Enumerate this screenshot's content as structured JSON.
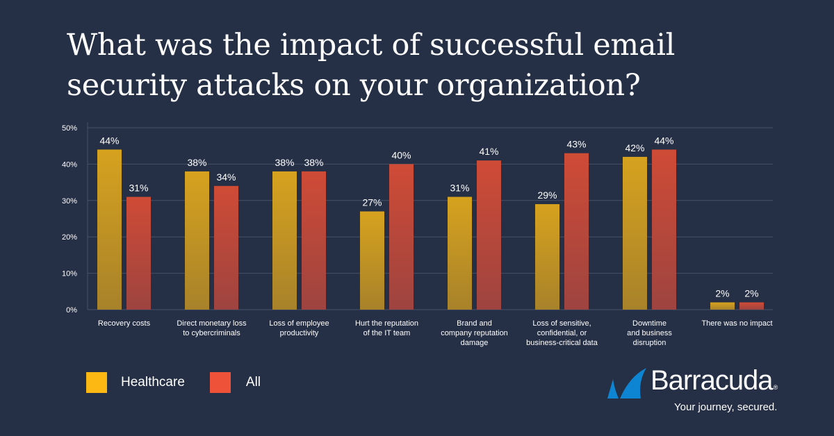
{
  "chart_data": {
    "type": "bar",
    "title": "What was the impact of successful email security attacks on your organization?",
    "xlabel": "",
    "ylabel": "",
    "ylim": [
      0,
      50
    ],
    "yticks": [
      "0%",
      "10%",
      "20%",
      "30%",
      "40%",
      "50%"
    ],
    "ytick_values": [
      0,
      10,
      20,
      30,
      40,
      50
    ],
    "grid": true,
    "legend_position": "bottom-left",
    "categories": [
      [
        "Recovery costs"
      ],
      [
        "Direct monetary loss",
        "to cybercriminals"
      ],
      [
        "Loss of employee",
        "productivity"
      ],
      [
        "Hurt the reputation",
        "of the IT team"
      ],
      [
        "Brand and",
        "company reputation",
        "damage"
      ],
      [
        "Loss of sensitive,",
        "confidential, or",
        "business-critical data"
      ],
      [
        "Downtime",
        "and business",
        "disruption"
      ],
      [
        "There was no impact"
      ]
    ],
    "series": [
      {
        "name": "Healthcare",
        "color": "#fdb813",
        "bar_top": "#d6a21e",
        "bar_bottom": "#a8822a",
        "values": [
          44,
          38,
          38,
          27,
          31,
          29,
          42,
          2
        ],
        "labels": [
          "44%",
          "38%",
          "38%",
          "27%",
          "31%",
          "29%",
          "42%",
          "2%"
        ]
      },
      {
        "name": "All",
        "color": "#ee5339",
        "bar_top": "#cf4b36",
        "bar_bottom": "#9e4440",
        "values": [
          31,
          34,
          38,
          40,
          41,
          43,
          44,
          2
        ],
        "labels": [
          "31%",
          "34%",
          "38%",
          "40%",
          "41%",
          "43%",
          "44%",
          "2%"
        ]
      }
    ]
  },
  "header": {
    "title_line1": "What was the impact of successful email",
    "title_line2": "security attacks on your organization?"
  },
  "brand": {
    "name": "Barracuda",
    "registered": "®",
    "tagline": "Your journey, secured.",
    "logo_color": "#0d85d2",
    "logo_icon": "shark-fin-icon"
  }
}
